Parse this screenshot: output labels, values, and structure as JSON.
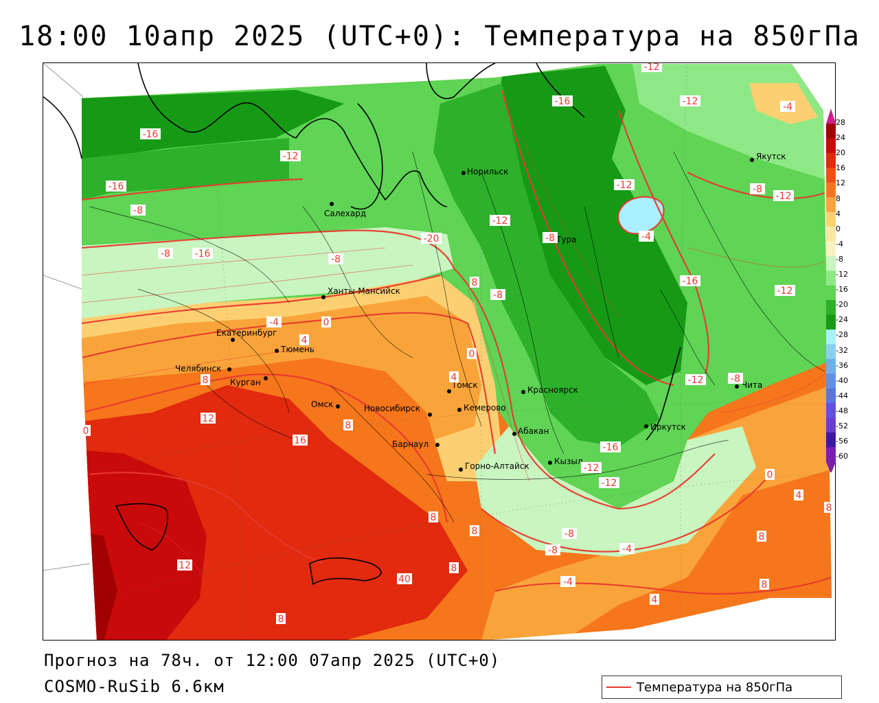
{
  "title": "18:00 10апр 2025 (UTC+0): Температура на 850гПа",
  "forecast_line": "Прогноз на 78ч. от 12:00 07апр 2025 (UTC+0)",
  "model_line": "COSMO-RuSib 6.6км",
  "legend": {
    "label": "Температура на 850гПа",
    "line_color": "#e8392e"
  },
  "color_scale": {
    "ticks": [
      "28",
      "24",
      "20",
      "16",
      "12",
      "8",
      "4",
      "0",
      "-4",
      "-8",
      "-12",
      "-16",
      "-20",
      "-24",
      "-28",
      "-32",
      "-36",
      "-40",
      "-44",
      "-48",
      "-52",
      "-56",
      "-60"
    ],
    "colors": [
      "#a00000",
      "#c80a0a",
      "#e12a0e",
      "#f04f14",
      "#f6761c",
      "#f9a43a",
      "#fcd072",
      "#fde6a3",
      "#f8f2c0",
      "#c9f5c0",
      "#8fe886",
      "#5fd455",
      "#2db02a",
      "#169a16",
      "#aaf0ff",
      "#8ccff2",
      "#6bb0ee",
      "#5d92ea",
      "#5776de",
      "#6055d8",
      "#6a3fc8",
      "#3c1a9c",
      "#7a1fb0"
    ]
  },
  "cities": [
    {
      "name": "Якутск"
    },
    {
      "name": "Норильск"
    },
    {
      "name": "Салехард"
    },
    {
      "name": "Тура"
    },
    {
      "name": "Ханты-Мансийск"
    },
    {
      "name": "Екатеринбург"
    },
    {
      "name": "Тюмень"
    },
    {
      "name": "Челябинск"
    },
    {
      "name": "Курган"
    },
    {
      "name": "Омск"
    },
    {
      "name": "Новосибирск"
    },
    {
      "name": "Томск"
    },
    {
      "name": "Кемерово"
    },
    {
      "name": "Барнаул"
    },
    {
      "name": "Горно-Алтайск"
    },
    {
      "name": "Красноярск"
    },
    {
      "name": "Абакан"
    },
    {
      "name": "Кызыл"
    },
    {
      "name": "Иркутск"
    },
    {
      "name": "Чита"
    }
  ],
  "isotherm_labels": [
    "-12",
    "-16",
    "-12",
    "-4",
    "-16",
    "-12",
    "-12",
    "-8",
    "-16",
    "-12",
    "-8",
    "-20",
    "-12",
    "-8",
    "-8",
    "-8",
    "-16",
    "-4",
    "8",
    "-8",
    "-16",
    "-12",
    "-12",
    "-8",
    "-4",
    "0",
    "4",
    "0",
    "4",
    "8",
    "12",
    "0",
    "8",
    "16",
    "12",
    "8",
    "8",
    "40",
    "8",
    "-12",
    "-8",
    "-8",
    "-4",
    "-4",
    "4",
    "0",
    "8",
    "8",
    "4",
    "8",
    "-12",
    "-16",
    "8"
  ]
}
